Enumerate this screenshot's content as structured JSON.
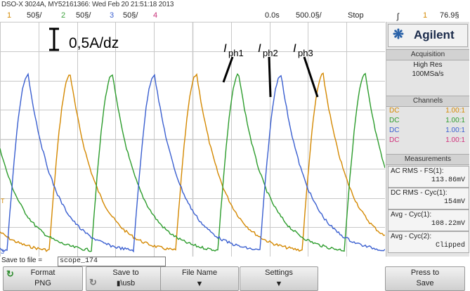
{
  "title": "DSO-X 3024A, MY52161366: Wed Feb 20 21:51:18 2013",
  "status": {
    "ch1": {
      "num": "1",
      "scale": "50§/",
      "color": "#d48800"
    },
    "ch2": {
      "num": "2",
      "scale": "50§/",
      "color": "#3ea23e"
    },
    "ch3": {
      "num": "3",
      "scale": "50§/",
      "color": "#3a5fd0"
    },
    "ch4": {
      "num": "4",
      "color": "#c8327a"
    },
    "time_pos": "0.0s",
    "time_scale": "500.0§/",
    "run_state": "Stop",
    "trigger_symbol": "ʃ",
    "trigger_ch": "1",
    "trigger_level": "76.9§"
  },
  "annotations": {
    "scale": "0,5A/dz",
    "ph1_I": "I",
    "ph1_sub": "ph1",
    "ph2_I": "I",
    "ph2_sub": "ph2",
    "ph3_I": "I",
    "ph3_sub": "ph3",
    "ground_marker": "3"
  },
  "panel": {
    "brand": "Agilent",
    "acq_head": "Acquisition",
    "acq_mode": "High Res",
    "acq_rate": "100MSa/s",
    "ch_head": "Channels",
    "channels": [
      {
        "cpl": "DC",
        "ratio": "1.00:1",
        "color": "#d48800"
      },
      {
        "cpl": "DC",
        "ratio": "1.00:1",
        "color": "#2c9c2c"
      },
      {
        "cpl": "DC",
        "ratio": "1.00:1",
        "color": "#3a5fd0"
      },
      {
        "cpl": "DC",
        "ratio": "1.00:1",
        "color": "#d0307a"
      }
    ],
    "meas_head": "Measurements",
    "measurements": [
      {
        "label": "AC RMS - FS(1):",
        "value": "113.86mV"
      },
      {
        "label": "DC RMS - Cyc(1):",
        "value": "154mV"
      },
      {
        "label": "Avg - Cyc(1):",
        "value": "108.22mV"
      },
      {
        "label": "Avg - Cyc(2):",
        "value": "Clipped"
      }
    ]
  },
  "filebar": {
    "label": "Save to file =",
    "value": "scope_174"
  },
  "softkeys": {
    "format_l1": "Format",
    "format_l2": "PNG",
    "saveto_l1": "Save to",
    "saveto_l2": "\\usb",
    "filename": "File Name",
    "settings": "Settings",
    "press_l1": "Press to",
    "press_l2": "Save"
  },
  "colors": {
    "orange": "#d48800",
    "green": "#2c9c2c",
    "blue": "#3a5fd0",
    "grid": "#c8c8c8"
  }
}
